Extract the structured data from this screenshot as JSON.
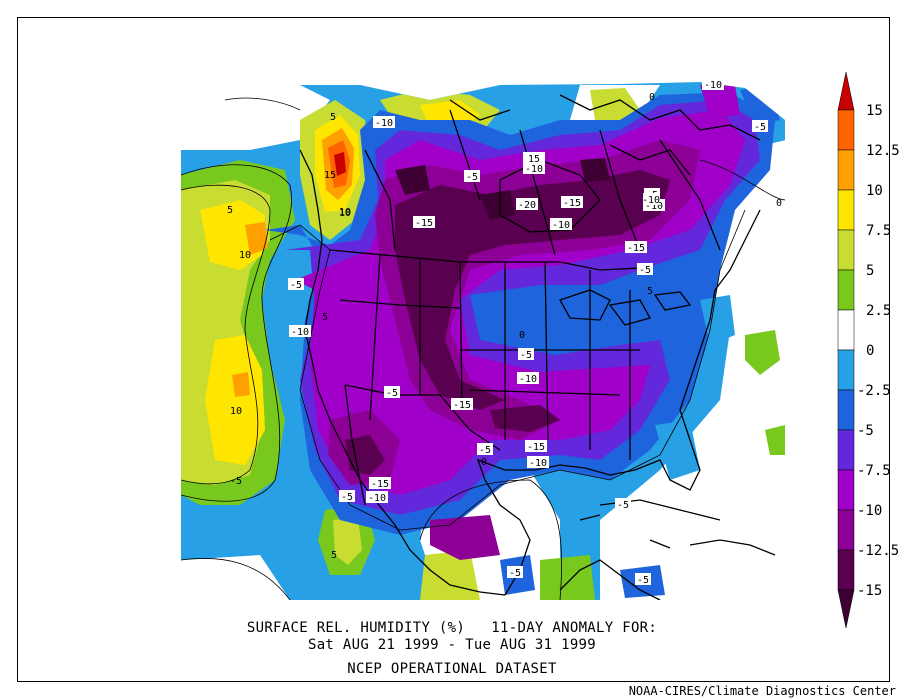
{
  "title": {
    "line1": "SURFACE REL. HUMIDITY (%)   11-DAY ANOMALY FOR:",
    "line2": "Sat AUG 21 1999 - Tue AUG 31 1999",
    "line3": "NCEP OPERATIONAL DATASET"
  },
  "credit": "NOAA-CIRES/Climate Diagnostics Center",
  "colorbar": {
    "labels": [
      "15",
      "12.5",
      "10",
      "7.5",
      "5",
      "2.5",
      "0",
      "-2.5",
      "-5",
      "-7.5",
      "-10",
      "-12.5",
      "-15"
    ],
    "colors": [
      "#c80000",
      "#ff6400",
      "#ffa000",
      "#ffe600",
      "#c8dc32",
      "#78c81e",
      "#ffffff",
      "#28a0e6",
      "#1e64dc",
      "#6428dc",
      "#a000c8",
      "#8c0096",
      "#5a0050",
      "#3c0032"
    ]
  },
  "contour_labels": [
    "-10",
    "-5",
    "5",
    "10",
    "-5",
    "15",
    "10",
    "15",
    "-10",
    "-10",
    "-15",
    "-20",
    "-15",
    "-5",
    "-5",
    "-10",
    "-15",
    "-15",
    "-5",
    "-5",
    "5",
    "5",
    "10",
    "-5",
    "5",
    "-10",
    "-5",
    "-10",
    "10",
    "-15",
    "-5",
    "-15",
    "-10",
    "-15",
    "-5",
    "-10",
    "5",
    "-5",
    "-5",
    "-5",
    "-10",
    "0",
    "0",
    "0",
    "0"
  ]
}
